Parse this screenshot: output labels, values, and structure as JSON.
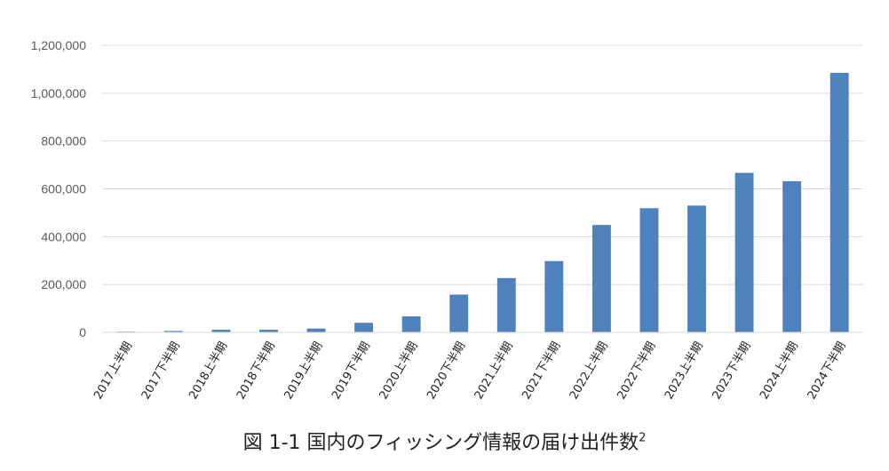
{
  "chart_data": {
    "type": "bar",
    "categories": [
      "2017上半期",
      "2017下半期",
      "2018上半期",
      "2018下半期",
      "2019上半期",
      "2019下半期",
      "2020上半期",
      "2020下半期",
      "2021上半期",
      "2021下半期",
      "2022上半期",
      "2022下半期",
      "2023上半期",
      "2023下半期",
      "2024上半期",
      "2024下半期"
    ],
    "values": [
      3000,
      6000,
      11000,
      11000,
      16000,
      40000,
      67000,
      158000,
      227000,
      298000,
      449000,
      519000,
      530000,
      667000,
      632000,
      1085000
    ],
    "ylim": [
      0,
      1200000
    ],
    "yticks": [
      0,
      200000,
      400000,
      600000,
      800000,
      1000000,
      1200000
    ],
    "ytick_labels": [
      "0",
      "200,000",
      "400,000",
      "600,000",
      "800,000",
      "1,000,000",
      "1,200,000"
    ],
    "grid": true,
    "bar_color": "#4f81bd",
    "grid_color": "#d9d9d9"
  },
  "caption": {
    "text": "図 1-1 国内のフィッシング情報の届け出件数",
    "footnote": "2"
  }
}
